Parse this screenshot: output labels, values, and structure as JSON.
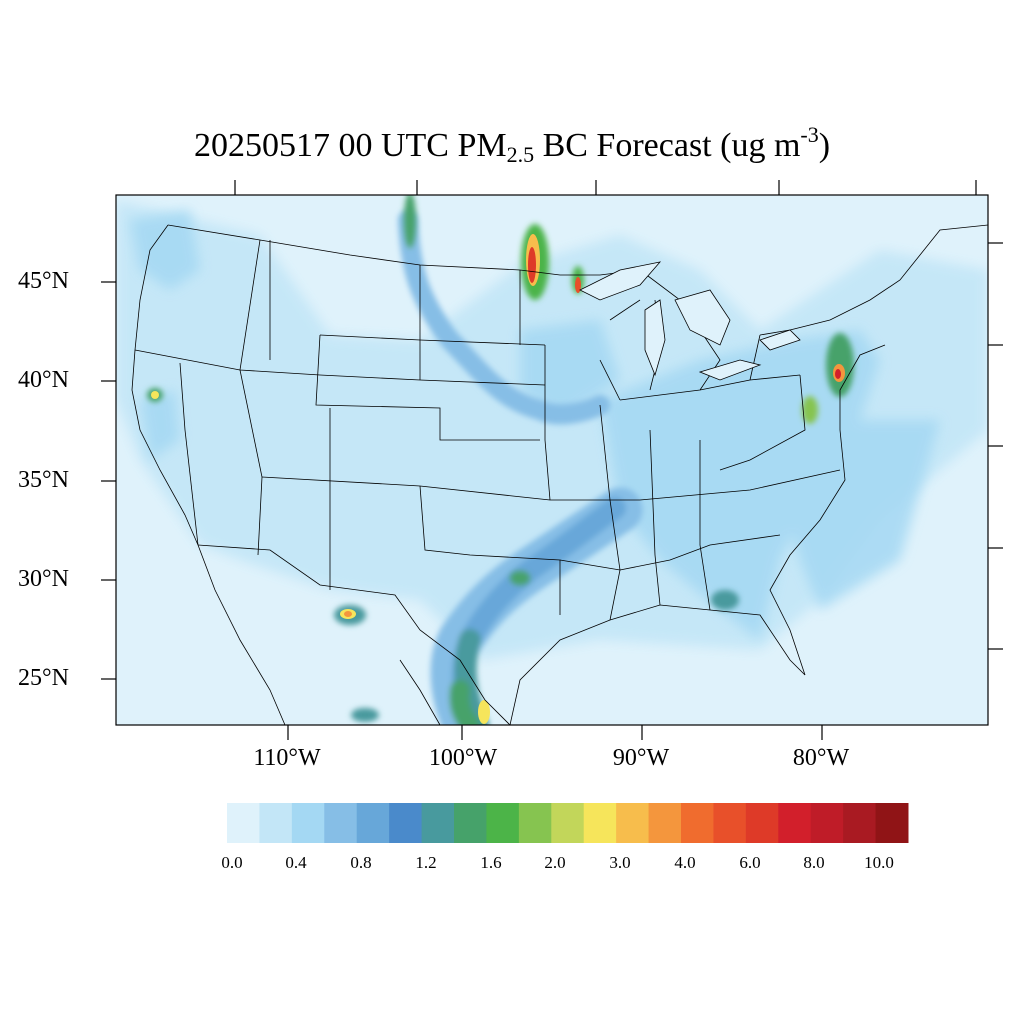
{
  "title": {
    "pre": "20250517 00 UTC PM",
    "sub": "2.5",
    "mid": " BC Forecast (ug m",
    "sup": "-3",
    "post": ")"
  },
  "latitude_labels": [
    "45°N",
    "40°N",
    "35°N",
    "30°N",
    "25°N"
  ],
  "longitude_labels": [
    "110°W",
    "100°W",
    "90°W",
    "80°W"
  ],
  "colorbar": {
    "colors": [
      "#dff2fb",
      "#c3e6f7",
      "#a4d8f3",
      "#86bee6",
      "#67a7d9",
      "#4a8acb",
      "#489a9e",
      "#46a26a",
      "#4cb448",
      "#86c450",
      "#c2d65a",
      "#f6e55b",
      "#f7bd4c",
      "#f4963d",
      "#f06c2e",
      "#e8502a",
      "#de3a28",
      "#d21f2b",
      "#bf1c28",
      "#a91a22",
      "#901416"
    ],
    "tick_labels": [
      "0.0",
      "0.4",
      "0.8",
      "1.2",
      "1.6",
      "2.0",
      "3.0",
      "4.0",
      "6.0",
      "8.0",
      "10.0"
    ]
  }
}
